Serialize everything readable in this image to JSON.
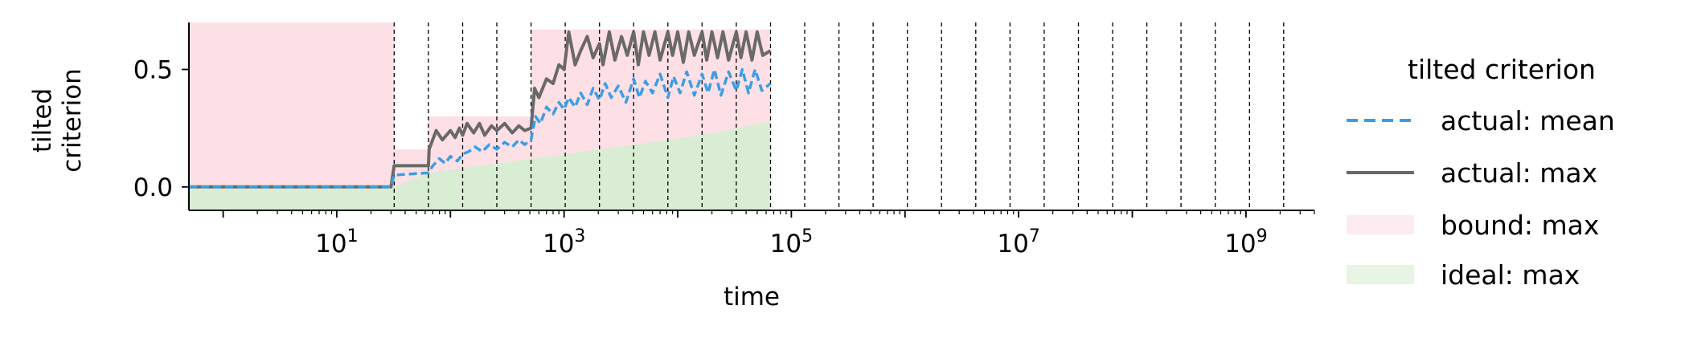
{
  "chart_data": {
    "type": "line",
    "xscale": "log",
    "xlabel": "time",
    "ylabel": [
      "tilted",
      "criterion"
    ],
    "xlim": [
      0.5,
      4000000000
    ],
    "ylim": [
      -0.1,
      0.7
    ],
    "yticks": [
      0.0,
      0.5
    ],
    "ytick_labels": [
      "0.0",
      "0.5"
    ],
    "xtick_exponents": [
      "1",
      "3",
      "5",
      "7",
      "9"
    ],
    "xtick_values": [
      10,
      1000,
      100000,
      10000000,
      1000000000
    ],
    "vlines": [
      32,
      64,
      128,
      256,
      512,
      1024,
      2048,
      4096,
      8192,
      16384,
      32768,
      65536,
      131072,
      262144,
      524288,
      1048576,
      2097152,
      4194304,
      8388608,
      16777216,
      33554432,
      67108864,
      134217728,
      268435456,
      536870912,
      1073741824,
      2147483648
    ],
    "legend": {
      "title": "tilted criterion",
      "placement": "outside-right",
      "entries": [
        {
          "label": "actual: mean",
          "style": "dashed",
          "color": "#3a9ee6"
        },
        {
          "label": "actual: max",
          "style": "solid",
          "color": "#696969"
        },
        {
          "label": "bound: max",
          "style": "patch",
          "color": "#fdecef"
        },
        {
          "label": "ideal: max",
          "style": "patch",
          "color": "#e8f4e4"
        }
      ]
    },
    "series": [
      {
        "name": "bound: max",
        "kind": "step-area",
        "color": "#fde0e6",
        "x": [
          0.5,
          32,
          32,
          64,
          64,
          128,
          128,
          256,
          256,
          512,
          512,
          1024,
          1024,
          65536
        ],
        "y": [
          0.7,
          0.7,
          0.16,
          0.16,
          0.3,
          0.3,
          0.3,
          0.3,
          0.3,
          0.3,
          0.67,
          0.67,
          0.67,
          0.67
        ]
      },
      {
        "name": "ideal: max",
        "kind": "area",
        "color": "#d9edd4",
        "x": [
          0.5,
          32,
          64,
          128,
          256,
          512,
          1024,
          2048,
          4096,
          8192,
          16384,
          32768,
          65536
        ],
        "y": [
          0.0,
          0.0,
          0.06,
          0.08,
          0.1,
          0.12,
          0.14,
          0.16,
          0.18,
          0.2,
          0.22,
          0.25,
          0.28
        ]
      },
      {
        "name": "actual: max",
        "kind": "line",
        "color": "#696969",
        "x": [
          0.5,
          30,
          32,
          64,
          65,
          75,
          85,
          100,
          110,
          120,
          128,
          140,
          160,
          180,
          200,
          230,
          256,
          300,
          350,
          400,
          450,
          512,
          550,
          600,
          700,
          800,
          900,
          1000,
          1100,
          1250,
          1400,
          1600,
          1800,
          2048,
          2200,
          2500,
          2800,
          3200,
          3600,
          4096,
          4500,
          5000,
          5600,
          6300,
          7000,
          8192,
          9000,
          10000,
          11200,
          12500,
          14000,
          16384,
          18000,
          20000,
          22400,
          25000,
          28000,
          32768,
          36000,
          40000,
          45000,
          50000,
          56000,
          65536
        ],
        "y": [
          0.0,
          0.0,
          0.09,
          0.09,
          0.16,
          0.24,
          0.2,
          0.24,
          0.21,
          0.25,
          0.22,
          0.27,
          0.23,
          0.27,
          0.22,
          0.26,
          0.24,
          0.27,
          0.23,
          0.26,
          0.24,
          0.25,
          0.42,
          0.38,
          0.46,
          0.44,
          0.52,
          0.5,
          0.66,
          0.52,
          0.58,
          0.64,
          0.55,
          0.61,
          0.52,
          0.66,
          0.54,
          0.64,
          0.56,
          0.66,
          0.52,
          0.66,
          0.56,
          0.66,
          0.54,
          0.66,
          0.56,
          0.66,
          0.53,
          0.66,
          0.56,
          0.66,
          0.54,
          0.66,
          0.55,
          0.66,
          0.54,
          0.66,
          0.55,
          0.66,
          0.54,
          0.66,
          0.56,
          0.58
        ]
      },
      {
        "name": "actual: mean",
        "kind": "line",
        "dashed": true,
        "color": "#3a9ee6",
        "x": [
          0.5,
          30,
          32,
          64,
          70,
          80,
          90,
          100,
          115,
          128,
          145,
          165,
          190,
          220,
          256,
          300,
          350,
          400,
          450,
          512,
          560,
          620,
          700,
          800,
          900,
          1000,
          1100,
          1250,
          1400,
          1600,
          1800,
          2048,
          2300,
          2600,
          3000,
          3500,
          4096,
          4600,
          5200,
          6000,
          7000,
          8192,
          9200,
          10500,
          12000,
          14000,
          16384,
          18500,
          21000,
          24000,
          28000,
          32768,
          37000,
          42000,
          48000,
          55000,
          65536
        ],
        "y": [
          0.0,
          0.0,
          0.05,
          0.06,
          0.09,
          0.12,
          0.1,
          0.13,
          0.11,
          0.14,
          0.15,
          0.17,
          0.15,
          0.18,
          0.16,
          0.19,
          0.17,
          0.2,
          0.18,
          0.2,
          0.3,
          0.27,
          0.34,
          0.31,
          0.36,
          0.33,
          0.38,
          0.34,
          0.4,
          0.35,
          0.42,
          0.37,
          0.44,
          0.38,
          0.43,
          0.36,
          0.46,
          0.38,
          0.45,
          0.4,
          0.48,
          0.38,
          0.47,
          0.4,
          0.49,
          0.39,
          0.48,
          0.4,
          0.5,
          0.39,
          0.49,
          0.41,
          0.5,
          0.4,
          0.5,
          0.41,
          0.44
        ]
      }
    ]
  }
}
